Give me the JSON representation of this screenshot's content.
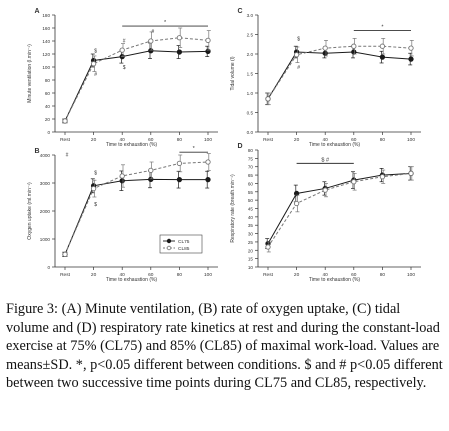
{
  "chart_data": [
    {
      "panel": "A",
      "type": "line",
      "ylabel": "Minute ventilation (l.min⁻¹)",
      "xlabel": "",
      "ylim": [
        0,
        180
      ],
      "yticks": [
        "0",
        "20",
        "40",
        "60",
        "80",
        "100",
        "120",
        "140",
        "160",
        "180"
      ],
      "x": [
        "Rest",
        "20",
        "40",
        "60",
        "80",
        "100"
      ],
      "series": [
        {
          "name": "CL75",
          "values": [
            17,
            110,
            116,
            125,
            123,
            124
          ],
          "sd": [
            3,
            10,
            10,
            12,
            10,
            8
          ]
        },
        {
          "name": "CL85",
          "values": [
            17,
            105,
            126,
            140,
            145,
            141
          ],
          "sd": [
            3,
            12,
            10,
            14,
            15,
            15
          ]
        }
      ],
      "annotations": [
        {
          "text": "$",
          "x": "20",
          "y": 122
        },
        {
          "text": "#",
          "x": "20",
          "y": 86
        },
        {
          "text": "#",
          "x": "40",
          "y": 138
        },
        {
          "text": "$",
          "x": "40",
          "y": 97
        },
        {
          "text": "#",
          "x": "60",
          "y": 152
        }
      ],
      "sig_bar": {
        "text": "*",
        "from": "40",
        "to": "100",
        "y": 163
      }
    },
    {
      "panel": "B",
      "type": "line",
      "ylabel": "Oxygen uptake (ml.min⁻¹)",
      "xlabel": "",
      "ylim": [
        0,
        4000
      ],
      "yticks": [
        "0",
        "1000",
        "2000",
        "3000",
        "4000"
      ],
      "x": [
        "Rest",
        "20",
        "40",
        "60",
        "80",
        "100"
      ],
      "series": [
        {
          "name": "CL75",
          "values": [
            450,
            2900,
            3080,
            3130,
            3120,
            3120
          ],
          "sd": [
            80,
            250,
            350,
            300,
            300,
            300
          ]
        },
        {
          "name": "CL85",
          "values": [
            450,
            2800,
            3250,
            3450,
            3700,
            3750
          ],
          "sd": [
            80,
            300,
            400,
            300,
            300,
            300
          ]
        }
      ],
      "annotations": [
        {
          "text": "#",
          "x": "Rest",
          "y": 3950
        },
        {
          "text": "$",
          "x": "20",
          "y": 3300
        },
        {
          "text": "$",
          "x": "20",
          "y": 2180
        }
      ],
      "sig_bar": {
        "text": "*",
        "from": "80",
        "to": "100",
        "y": 4100
      },
      "legend": {
        "entries": [
          "CL75",
          "CL85"
        ],
        "position": "bottom-right"
      }
    },
    {
      "panel": "C",
      "type": "line",
      "ylabel": "Tidal volume (l)",
      "xlabel": "",
      "ylim": [
        0.0,
        3.0
      ],
      "yticks": [
        "0.0",
        "0.5",
        "1.0",
        "1.5",
        "2.0",
        "2.5",
        "3.0"
      ],
      "x": [
        "Rest",
        "20",
        "40",
        "60",
        "80",
        "100"
      ],
      "series": [
        {
          "name": "CL75",
          "values": [
            0.85,
            2.05,
            2.02,
            2.05,
            1.92,
            1.87
          ],
          "sd": [
            0.15,
            0.15,
            0.12,
            0.15,
            0.15,
            0.15
          ]
        },
        {
          "name": "CL85",
          "values": [
            0.85,
            1.98,
            2.15,
            2.2,
            2.2,
            2.15
          ],
          "sd": [
            0.15,
            0.2,
            0.2,
            0.2,
            0.2,
            0.2
          ]
        }
      ],
      "annotations": [
        {
          "text": "$",
          "x": "20",
          "y": 2.35
        },
        {
          "text": "#",
          "x": "20",
          "y": 1.62
        }
      ],
      "sig_bar": {
        "text": "*",
        "from": "60",
        "to": "100",
        "y": 2.6
      }
    },
    {
      "panel": "D",
      "type": "line",
      "ylabel": "Respiratory rate (breath.min⁻¹)",
      "xlabel": "Time to exhaustion (%)",
      "ylim": [
        10,
        80
      ],
      "yticks": [
        "10",
        "15",
        "20",
        "25",
        "30",
        "35",
        "40",
        "45",
        "50",
        "55",
        "60",
        "65",
        "70",
        "75",
        "80"
      ],
      "x": [
        "Rest",
        "20",
        "40",
        "60",
        "80",
        "100"
      ],
      "series": [
        {
          "name": "CL75",
          "values": [
            24,
            54,
            57,
            62,
            65,
            66
          ],
          "sd": [
            3,
            5,
            4,
            5,
            4,
            4
          ]
        },
        {
          "name": "CL85",
          "values": [
            22,
            48,
            56,
            61,
            64,
            66
          ],
          "sd": [
            3,
            5,
            4,
            5,
            4,
            4
          ]
        }
      ],
      "sig_bar": {
        "text": "$ #",
        "from": "20",
        "to": "60",
        "y": 72
      }
    }
  ],
  "xlabel": "Time to exhaustion (%)",
  "colors": {
    "cl75": "#1a1a1a",
    "cl85": "#777777"
  },
  "caption": {
    "lead": "Figure 3:",
    "text": " (A) Minute ventilation, (B) rate of oxygen uptake, (C) tidal volume and (D) respiratory rate kinetics at rest and during the constant-load exercise at 75% (CL75) and 85% (CL85) of maximal work-load. Values are means±SD. *, p<0.05 different between conditions. $ and # p<0.05 different between two successive time points during CL75 and CL85, respectively."
  }
}
